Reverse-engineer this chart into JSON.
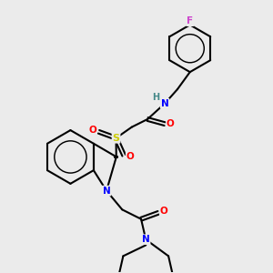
{
  "bg_color": "#ebebeb",
  "atom_colors": {
    "C": "#000000",
    "N": "#0000ff",
    "O": "#ff0000",
    "S": "#cccc00",
    "F": "#cc44cc",
    "H": "#448888"
  },
  "bond_color": "#000000",
  "bond_width": 1.5
}
